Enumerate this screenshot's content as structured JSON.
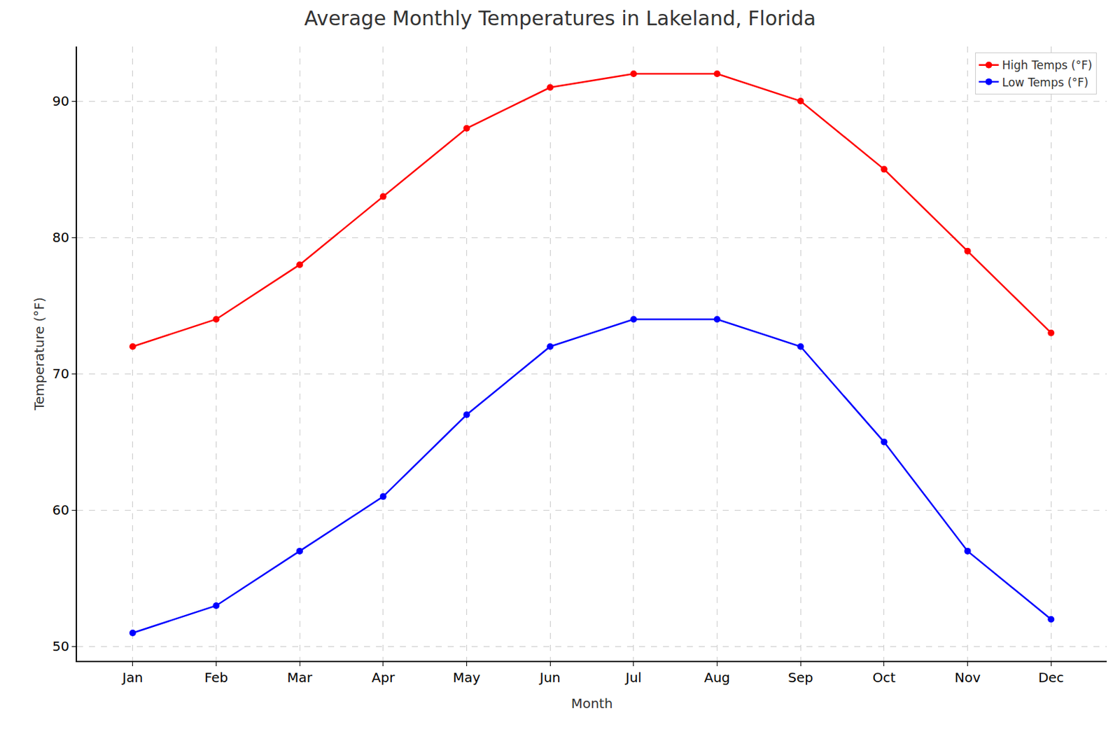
{
  "chart_data": {
    "type": "line",
    "title": "Average Monthly Temperatures in Lakeland, Florida",
    "x_label": "Month",
    "y_label": "Temperature (°F)",
    "categories": [
      "Jan",
      "Feb",
      "Mar",
      "Apr",
      "May",
      "Jun",
      "Jul",
      "Aug",
      "Sep",
      "Oct",
      "Nov",
      "Dec"
    ],
    "series": [
      {
        "name": "High Temps (°F)",
        "color": "#ff0000",
        "marker": "circle",
        "values": [
          72,
          74,
          78,
          83,
          88,
          91,
          92,
          92,
          90,
          85,
          79,
          73
        ]
      },
      {
        "name": "Low Temps (°F)",
        "color": "#0000ff",
        "marker": "circle",
        "values": [
          51,
          53,
          57,
          61,
          67,
          72,
          74,
          74,
          72,
          65,
          57,
          52
        ]
      }
    ],
    "ylim": [
      48.95,
      94.0
    ],
    "yticks": [
      50,
      60,
      70,
      80,
      90
    ],
    "grid": true,
    "legend": "upper right"
  }
}
